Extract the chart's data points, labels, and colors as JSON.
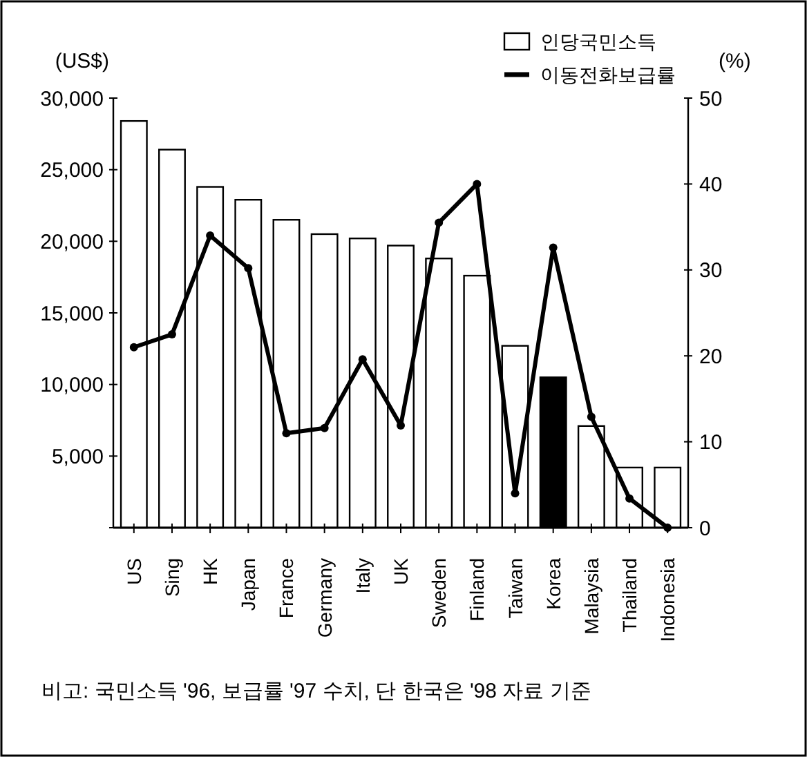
{
  "chart_data": {
    "type": "bar",
    "categories": [
      "US",
      "Sing",
      "HK",
      "Japan",
      "France",
      "Germany",
      "Italy",
      "UK",
      "Sweden",
      "Finland",
      "Taiwan",
      "Korea",
      "Malaysia",
      "Thailand",
      "Indonesia"
    ],
    "series": [
      {
        "name": "인당국민소득",
        "color": "#ffffff",
        "colors": [
          "#ffffff",
          "#ffffff",
          "#ffffff",
          "#ffffff",
          "#ffffff",
          "#ffffff",
          "#ffffff",
          "#ffffff",
          "#ffffff",
          "#ffffff",
          "#ffffff",
          "#000000",
          "#ffffff",
          "#ffffff",
          "#ffffff"
        ],
        "values": [
          28400,
          26400,
          23800,
          22900,
          21500,
          20500,
          20200,
          19700,
          18800,
          17600,
          12700,
          10500,
          7100,
          4200,
          4200
        ]
      },
      {
        "name": "이동전화보급률",
        "type": "line",
        "axis": "y2",
        "color": "#000000",
        "values": [
          21,
          22.5,
          34,
          30.2,
          11,
          11.6,
          19.6,
          11.9,
          35.5,
          40,
          4,
          32.6,
          12.9,
          3.4,
          0
        ]
      }
    ],
    "ylabel": "(US$)",
    "y2label": "(%)",
    "ylim": [
      0,
      30000
    ],
    "yticks": [
      {
        "value": 0,
        "label": null
      },
      {
        "value": 5000,
        "label": "5,000"
      },
      {
        "value": 10000,
        "label": "10,000"
      },
      {
        "value": 15000,
        "label": "15,000"
      },
      {
        "value": 20000,
        "label": "20,000"
      },
      {
        "value": 25000,
        "label": "25,000"
      },
      {
        "value": 30000,
        "label": "30,000"
      }
    ],
    "y2lim": [
      0,
      50
    ],
    "y2ticks": [
      0,
      10,
      20,
      30,
      40,
      50
    ],
    "legend": "top right",
    "marker": "circle",
    "grid": false,
    "annotations": [
      "비고: 국민소득 '96, 보급률 '97 수치, 단 한국은 '98 자료 기준"
    ]
  }
}
